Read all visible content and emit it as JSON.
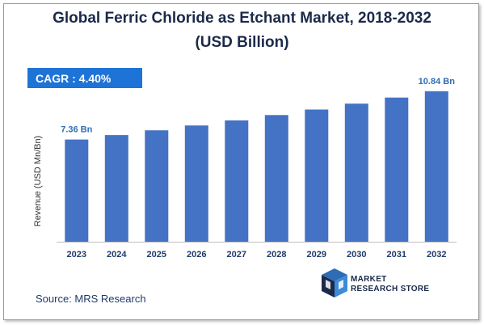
{
  "title_line1": "Global Ferric Chloride as Etchant Market, 2018-2032",
  "title_line2": "(USD Billion)",
  "cagr": "CAGR :  4.40%",
  "source": "Source: MRS Research",
  "logo": {
    "line1": "MARKET",
    "line2": "RESEARCH STORE",
    "icon": "cube-logo-icon"
  },
  "colors": {
    "bar": "#4472c4",
    "cagr_box": "#1e73d6",
    "title": "#1b2a4a"
  },
  "chart_data": {
    "type": "bar",
    "categories": [
      "2023",
      "2024",
      "2025",
      "2026",
      "2027",
      "2028",
      "2029",
      "2030",
      "2031",
      "2032"
    ],
    "values": [
      7.36,
      7.68,
      8.02,
      8.37,
      8.74,
      9.12,
      9.52,
      9.94,
      10.38,
      10.84
    ],
    "data_labels": {
      "2023": "7.36 Bn",
      "2032": "10.84 Bn"
    },
    "title": "Global Ferric Chloride as Etchant Market, 2018-2032",
    "xlabel": "",
    "ylabel": "Revenue (USD Mn/Bn)",
    "ylim": [
      0,
      11.7
    ],
    "grid": false,
    "legend": "none"
  }
}
